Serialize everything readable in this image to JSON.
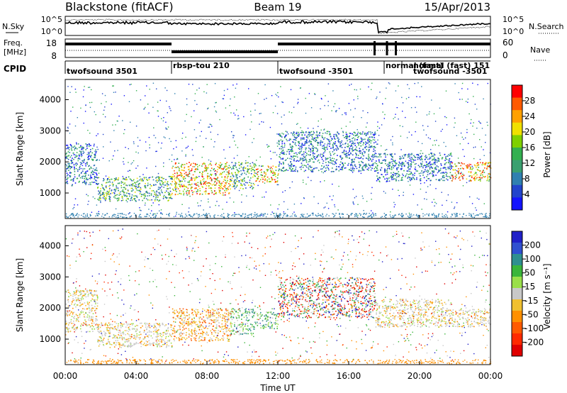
{
  "header": {
    "station": "Blackstone (fitACF)",
    "beam": "Beam 19",
    "date": "15/Apr/2013"
  },
  "status_panels": {
    "noise": {
      "left_label": "N.Sky",
      "right_label": "N.Search",
      "left_ticks": [
        "10^5",
        "10^0"
      ],
      "right_ticks": [
        "10^5",
        "10^0"
      ]
    },
    "frequency": {
      "left_label_top": "Freq.",
      "left_label_bottom": "[MHz]",
      "left_ticks": [
        "18",
        "8"
      ],
      "right_label": "Nave",
      "right_ticks": [
        "60",
        "0"
      ]
    },
    "cpid": {
      "label": "CPID",
      "segments": [
        {
          "name": "twofsound 3501",
          "start_hour": 0.0
        },
        {
          "name": "rbsp-tou 210",
          "start_hour": 6.0
        },
        {
          "name": "twofsound -3501",
          "start_hour": 12.0
        },
        {
          "name": "normal (fast)",
          "start_hour": 18.0
        },
        {
          "name": "normal (fast) 151",
          "start_hour": 19.0
        },
        {
          "name": "twofsound -3501",
          "start_hour": 19.0
        }
      ]
    }
  },
  "axes": {
    "x_ticks": [
      "00:00",
      "04:00",
      "08:00",
      "12:00",
      "16:00",
      "20:00",
      "00:00"
    ],
    "x_label": "Time UT",
    "y_ticks": [
      "1000",
      "2000",
      "3000",
      "4000"
    ],
    "y_label": "Slant Range [km]"
  },
  "colorbars": {
    "power": {
      "label": "Power [dB]",
      "ticks": [
        "28",
        "24",
        "20",
        "16",
        "12",
        "8",
        "4"
      ],
      "colors": [
        "#ff0000",
        "#ff5a00",
        "#ffa000",
        "#f0e000",
        "#7fd000",
        "#33b050",
        "#3aa070",
        "#2f80b0",
        "#2244cc",
        "#1414ff"
      ]
    },
    "velocity": {
      "label": "Velocity [m s⁻¹]",
      "ticks": [
        "200",
        "100",
        "50",
        "15",
        "-15",
        "-50",
        "-100",
        "-200"
      ],
      "colors": [
        "#2020c8",
        "#3050d0",
        "#2f8f8f",
        "#3ab53a",
        "#9adf4a",
        "#c8c8c8",
        "#f0c030",
        "#ff9000",
        "#ff5a00",
        "#ff2a00",
        "#e00000"
      ]
    }
  },
  "chart_data": [
    {
      "type": "heatmap",
      "title": "Power",
      "xlabel": "Time UT",
      "ylabel": "Slant Range [km]",
      "xlim": [
        0,
        24
      ],
      "ylim": [
        180,
        4650
      ],
      "value_label": "Power [dB]",
      "value_range": [
        0,
        30
      ],
      "regions": [
        {
          "t0": 0.0,
          "t1": 1.8,
          "r0": 1250,
          "r1": 2600,
          "level": "low"
        },
        {
          "t0": 1.8,
          "t1": 6.0,
          "r0": 750,
          "r1": 1550,
          "level": "mid"
        },
        {
          "t0": 6.0,
          "t1": 9.3,
          "r0": 950,
          "r1": 2000,
          "level": "high"
        },
        {
          "t0": 9.3,
          "t1": 10.7,
          "r0": 1150,
          "r1": 2000,
          "level": "mid"
        },
        {
          "t0": 10.7,
          "t1": 12.0,
          "r0": 1350,
          "r1": 1900,
          "level": "high"
        },
        {
          "t0": 12.0,
          "t1": 17.5,
          "r0": 1700,
          "r1": 3000,
          "level": "low"
        },
        {
          "t0": 17.5,
          "t1": 21.8,
          "r0": 1400,
          "r1": 2300,
          "level": "low"
        },
        {
          "t0": 21.8,
          "t1": 24.0,
          "r0": 1400,
          "r1": 2000,
          "level": "high"
        }
      ]
    },
    {
      "type": "heatmap",
      "title": "Velocity",
      "xlabel": "Time UT",
      "ylabel": "Slant Range [km]",
      "xlim": [
        0,
        24
      ],
      "ylim": [
        180,
        4650
      ],
      "value_label": "Velocity [m s⁻¹]",
      "value_range": [
        -200,
        200
      ],
      "regions": [
        {
          "t0": 0.0,
          "t1": 1.8,
          "r0": 1250,
          "r1": 2600,
          "level": "ground"
        },
        {
          "t0": 1.8,
          "t1": 6.0,
          "r0": 750,
          "r1": 1550,
          "level": "ground"
        },
        {
          "t0": 6.0,
          "t1": 9.3,
          "r0": 950,
          "r1": 2000,
          "level": "negative"
        },
        {
          "t0": 9.3,
          "t1": 10.7,
          "r0": 1150,
          "r1": 2000,
          "level": "positive"
        },
        {
          "t0": 10.7,
          "t1": 12.0,
          "r0": 1350,
          "r1": 1900,
          "level": "positive"
        },
        {
          "t0": 12.0,
          "t1": 17.5,
          "r0": 1700,
          "r1": 3000,
          "level": "mixed"
        },
        {
          "t0": 17.5,
          "t1": 21.8,
          "r0": 1400,
          "r1": 2300,
          "level": "ground"
        },
        {
          "t0": 21.8,
          "t1": 24.0,
          "r0": 1400,
          "r1": 2000,
          "level": "ground"
        }
      ]
    }
  ]
}
